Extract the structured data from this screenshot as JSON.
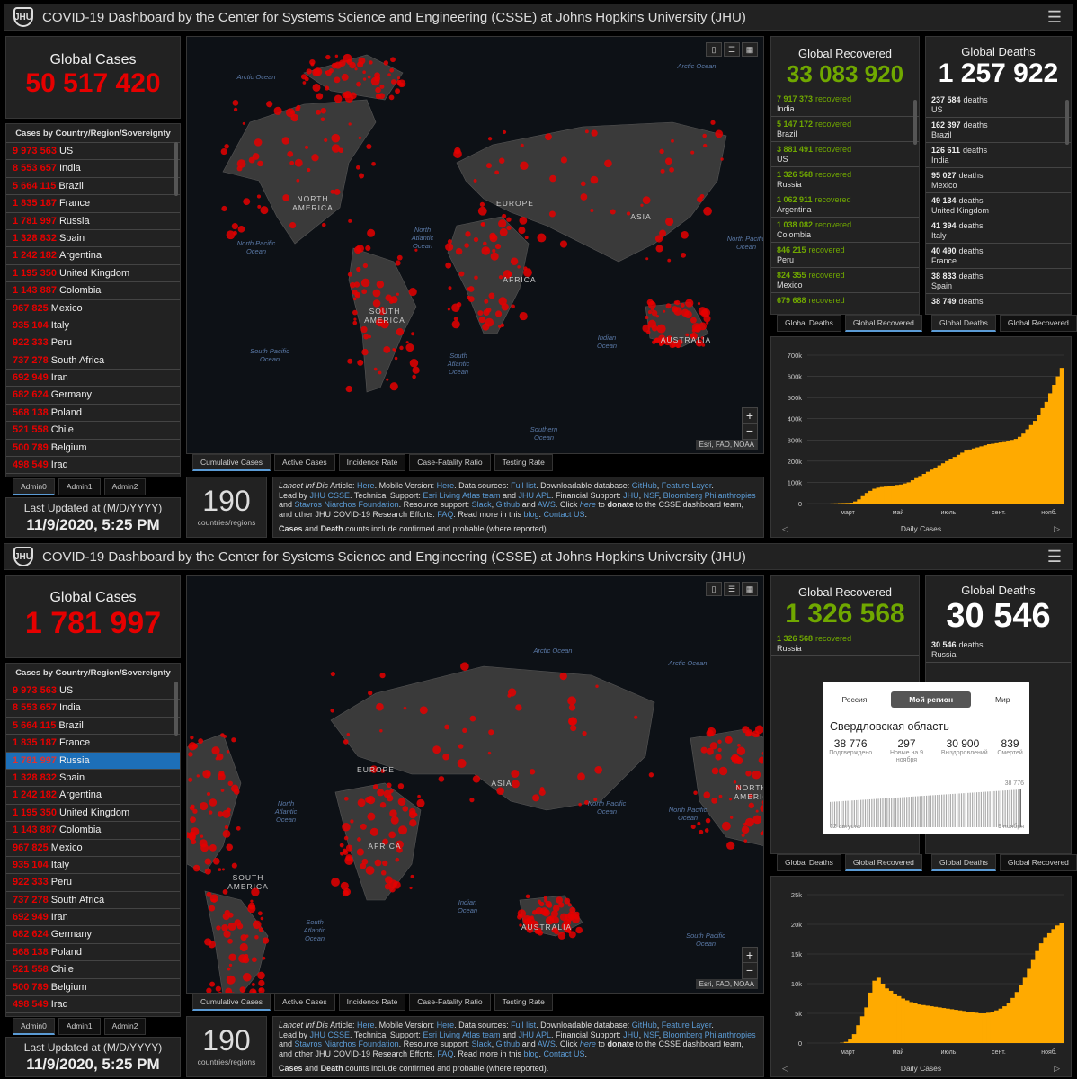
{
  "header_title": "COVID-19 Dashboard by the Center for Systems Science and Engineering (CSSE) at Johns Hopkins University (JHU)",
  "logo_text": "JHU",
  "menu_icon": "hamburger-icon",
  "colors": {
    "cases": "#e60000",
    "recovered": "#70a800",
    "chart": "#ffaa00",
    "accent": "#5b9bd5",
    "selected": "#1d6fb8"
  },
  "country_list": {
    "title": "Cases by Country/Region/Sovereignty",
    "rows": [
      {
        "value": "9 973 563",
        "name": "US"
      },
      {
        "value": "8 553 657",
        "name": "India"
      },
      {
        "value": "5 664 115",
        "name": "Brazil"
      },
      {
        "value": "1 835 187",
        "name": "France"
      },
      {
        "value": "1 781 997",
        "name": "Russia"
      },
      {
        "value": "1 328 832",
        "name": "Spain"
      },
      {
        "value": "1 242 182",
        "name": "Argentina"
      },
      {
        "value": "1 195 350",
        "name": "United Kingdom"
      },
      {
        "value": "1 143 887",
        "name": "Colombia"
      },
      {
        "value": "967 825",
        "name": "Mexico"
      },
      {
        "value": "935 104",
        "name": "Italy"
      },
      {
        "value": "922 333",
        "name": "Peru"
      },
      {
        "value": "737 278",
        "name": "South Africa"
      },
      {
        "value": "692 949",
        "name": "Iran"
      },
      {
        "value": "682 624",
        "name": "Germany"
      },
      {
        "value": "568 138",
        "name": "Poland"
      },
      {
        "value": "521 558",
        "name": "Chile"
      },
      {
        "value": "500 789",
        "name": "Belgium"
      },
      {
        "value": "498 549",
        "name": "Iraq"
      }
    ],
    "tabs": [
      "Admin0",
      "Admin1",
      "Admin2"
    ]
  },
  "map": {
    "tabs": [
      "Cumulative Cases",
      "Active Cases",
      "Incidence Rate",
      "Case-Fatality Ratio",
      "Testing Rate"
    ],
    "attribution": "Esri, FAO, NOAA",
    "zoom_in": "+",
    "zoom_out": "−",
    "labels_top": {
      "oceans": [
        "Arctic Ocean",
        "Arctic Ocean",
        "North Pacific Ocean",
        "North Atlantic Ocean",
        "North Pacific Ocean",
        "South Pacific Ocean",
        "South Atlantic Ocean",
        "Indian Ocean",
        "Southern Ocean"
      ],
      "continents": [
        "NORTH AMERICA",
        "EUROPE",
        "ASIA",
        "AFRICA",
        "SOUTH AMERICA",
        "AUSTRALIA"
      ]
    },
    "labels_bottom": {
      "oceans": [
        "Arctic Ocean",
        "Arctic Ocean",
        "North Atlantic Ocean",
        "North Pacific Ocean",
        "North Pacific Ocean",
        "Indian Ocean",
        "South Atlantic Ocean",
        "South Pacific Ocean"
      ],
      "continents": [
        "EUROPE",
        "ASIA",
        "AFRICA",
        "SOUTH AMERICA",
        "AUSTRALIA",
        "NORTH AMERIC"
      ]
    }
  },
  "countries_count": {
    "value": "190",
    "label": "countries/regions"
  },
  "info": {
    "lancet": "Lancet Inf Dis",
    "t1": " Article: ",
    "here1": "Here",
    "t2": ". Mobile Version: ",
    "here2": "Here",
    "t3": ". Data sources: ",
    "full_list": "Full list",
    "t4": ". Downloadable database: ",
    "github": "GitHub",
    "t5": ", ",
    "feature": "Feature Layer",
    "t6": ".",
    "t7": "Lead by ",
    "jhu_csse": "JHU CSSE",
    "t8": ". Technical Support: ",
    "esri": "Esri Living Atlas team",
    "t9": " and ",
    "jhu_apl": "JHU APL",
    "t10": ". Financial Support: ",
    "jhu": "JHU",
    "t11": ", ",
    "nsf": "NSF",
    "t12": ", ",
    "bloomberg": "Bloomberg Philanthropies",
    "t13": " and ",
    "stavros": "Stavros Niarchos Foundation",
    "t14": ". Resource support: ",
    "slack": "Slack",
    "t15": ", ",
    "github2": "Github",
    "t16": " and ",
    "aws": "AWS",
    "t17": ". Click ",
    "here3": "here",
    "t18": " to ",
    "donate": "donate",
    "t19": " to the CSSE dashboard team, and other JHU COVID-19 Research Efforts. ",
    "faq": "FAQ",
    "t20": ". Read more in this ",
    "blog": "blog",
    "t21": ". ",
    "contact": "Contact US",
    "t22": ".",
    "cases": "Cases",
    "t23": " and ",
    "death": "Death",
    "t24": " counts include confirmed and probable (where reported)."
  },
  "last_updated": {
    "label": "Last Updated at (M/D/YYYY)",
    "value": "11/9/2020, 5:25 PM"
  },
  "top": {
    "global_cases": {
      "label": "Global Cases",
      "value": "50 517 420"
    },
    "recovered": {
      "label": "Global Recovered",
      "value": "33 083 920",
      "word": "recovered",
      "rows": [
        {
          "value": "7 917 373",
          "name": "India"
        },
        {
          "value": "5 147 172",
          "name": "Brazil"
        },
        {
          "value": "3 881 491",
          "name": "US"
        },
        {
          "value": "1 326 568",
          "name": "Russia"
        },
        {
          "value": "1 062 911",
          "name": "Argentina"
        },
        {
          "value": "1 038 082",
          "name": "Colombia"
        },
        {
          "value": "846 215",
          "name": "Peru"
        },
        {
          "value": "824 355",
          "name": "Mexico"
        },
        {
          "value": "679 688",
          "name": ""
        }
      ],
      "tabs": [
        "Global Deaths",
        "Global Recovered"
      ]
    },
    "deaths": {
      "label": "Global Deaths",
      "value": "1 257 922",
      "word": "deaths",
      "rows": [
        {
          "value": "237 584",
          "name": "US"
        },
        {
          "value": "162 397",
          "name": "Brazil"
        },
        {
          "value": "126 611",
          "name": "India"
        },
        {
          "value": "95 027",
          "name": "Mexico"
        },
        {
          "value": "49 134",
          "name": "United Kingdom"
        },
        {
          "value": "41 394",
          "name": "Italy"
        },
        {
          "value": "40 490",
          "name": "France"
        },
        {
          "value": "38 833",
          "name": "Spain"
        },
        {
          "value": "38 749",
          "name": ""
        }
      ],
      "tabs": [
        "Global Deaths",
        "Global Recovered"
      ]
    },
    "chart_foot": "Daily Cases"
  },
  "bottom": {
    "global_cases": {
      "label": "Global Cases",
      "value": "1 781 997"
    },
    "recovered": {
      "label": "Global Recovered",
      "value": "1 326 568",
      "word": "recovered",
      "rows": [
        {
          "value": "1 326 568",
          "name": "Russia"
        }
      ],
      "tabs": [
        "Global Deaths",
        "Global Recovered"
      ]
    },
    "deaths": {
      "label": "Global Deaths",
      "value": "30 546",
      "word": "deaths",
      "rows": [
        {
          "value": "30 546",
          "name": "Russia"
        }
      ],
      "tabs": [
        "Global Deaths",
        "Global Recovered"
      ]
    },
    "selected_country": "Russia",
    "chart_foot": "Daily Cases"
  },
  "popup": {
    "tabs": [
      "Россия",
      "Мой регион",
      "Мир"
    ],
    "region": "Свердловская область",
    "stats": [
      {
        "value": "38 776",
        "label": "Подтверждено"
      },
      {
        "value": "297",
        "label": "Новые на 9 ноября"
      },
      {
        "value": "30 900",
        "label": "Выздоровлений"
      },
      {
        "value": "839",
        "label": "Смертей"
      }
    ],
    "chart_max_label": "38 776",
    "start_label": "12 августа",
    "end_label": "9 ноября",
    "chart_data": {
      "type": "bar",
      "x_start": "12 августа",
      "x_end": "9 ноября",
      "values_start": 26000,
      "values_end": 38776
    }
  },
  "chart_data": [
    {
      "type": "bar",
      "title": "",
      "xlabel": "Daily Cases",
      "x_ticks": [
        "март",
        "май",
        "июль",
        "сент.",
        "нояб."
      ],
      "y_ticks": [
        "0",
        "100k",
        "200k",
        "300k",
        "400k",
        "500k",
        "600k",
        "700k"
      ],
      "ylim": [
        0,
        700000
      ],
      "values": [
        0,
        0,
        0,
        0,
        0,
        0,
        500,
        1000,
        2000,
        2500,
        3000,
        4000,
        10000,
        20000,
        35000,
        50000,
        60000,
        70000,
        75000,
        78000,
        80000,
        82000,
        85000,
        88000,
        90000,
        95000,
        100000,
        110000,
        120000,
        130000,
        140000,
        150000,
        160000,
        170000,
        180000,
        190000,
        200000,
        210000,
        220000,
        230000,
        240000,
        250000,
        255000,
        260000,
        265000,
        270000,
        275000,
        280000,
        282000,
        285000,
        288000,
        290000,
        295000,
        300000,
        305000,
        315000,
        330000,
        350000,
        370000,
        390000,
        420000,
        450000,
        480000,
        520000,
        560000,
        600000,
        640000
      ]
    },
    {
      "type": "bar",
      "title": "",
      "xlabel": "Daily Cases",
      "x_ticks": [
        "март",
        "май",
        "июль",
        "сент.",
        "нояб."
      ],
      "y_ticks": [
        "0",
        "5k",
        "10k",
        "15k",
        "20k",
        "25k"
      ],
      "ylim": [
        0,
        25000
      ],
      "values": [
        0,
        0,
        0,
        0,
        0,
        0,
        0,
        0,
        50,
        200,
        600,
        1500,
        3000,
        4500,
        6000,
        8500,
        10500,
        11000,
        10000,
        9200,
        8800,
        8300,
        7900,
        7500,
        7200,
        6900,
        6700,
        6500,
        6400,
        6300,
        6200,
        6100,
        6000,
        5900,
        5800,
        5700,
        5600,
        5500,
        5400,
        5300,
        5200,
        5100,
        5000,
        5000,
        5100,
        5300,
        5500,
        5800,
        6200,
        6800,
        7600,
        8600,
        9800,
        11000,
        12500,
        14000,
        15500,
        16800,
        17800,
        18500,
        19200,
        19800,
        20300
      ]
    }
  ]
}
